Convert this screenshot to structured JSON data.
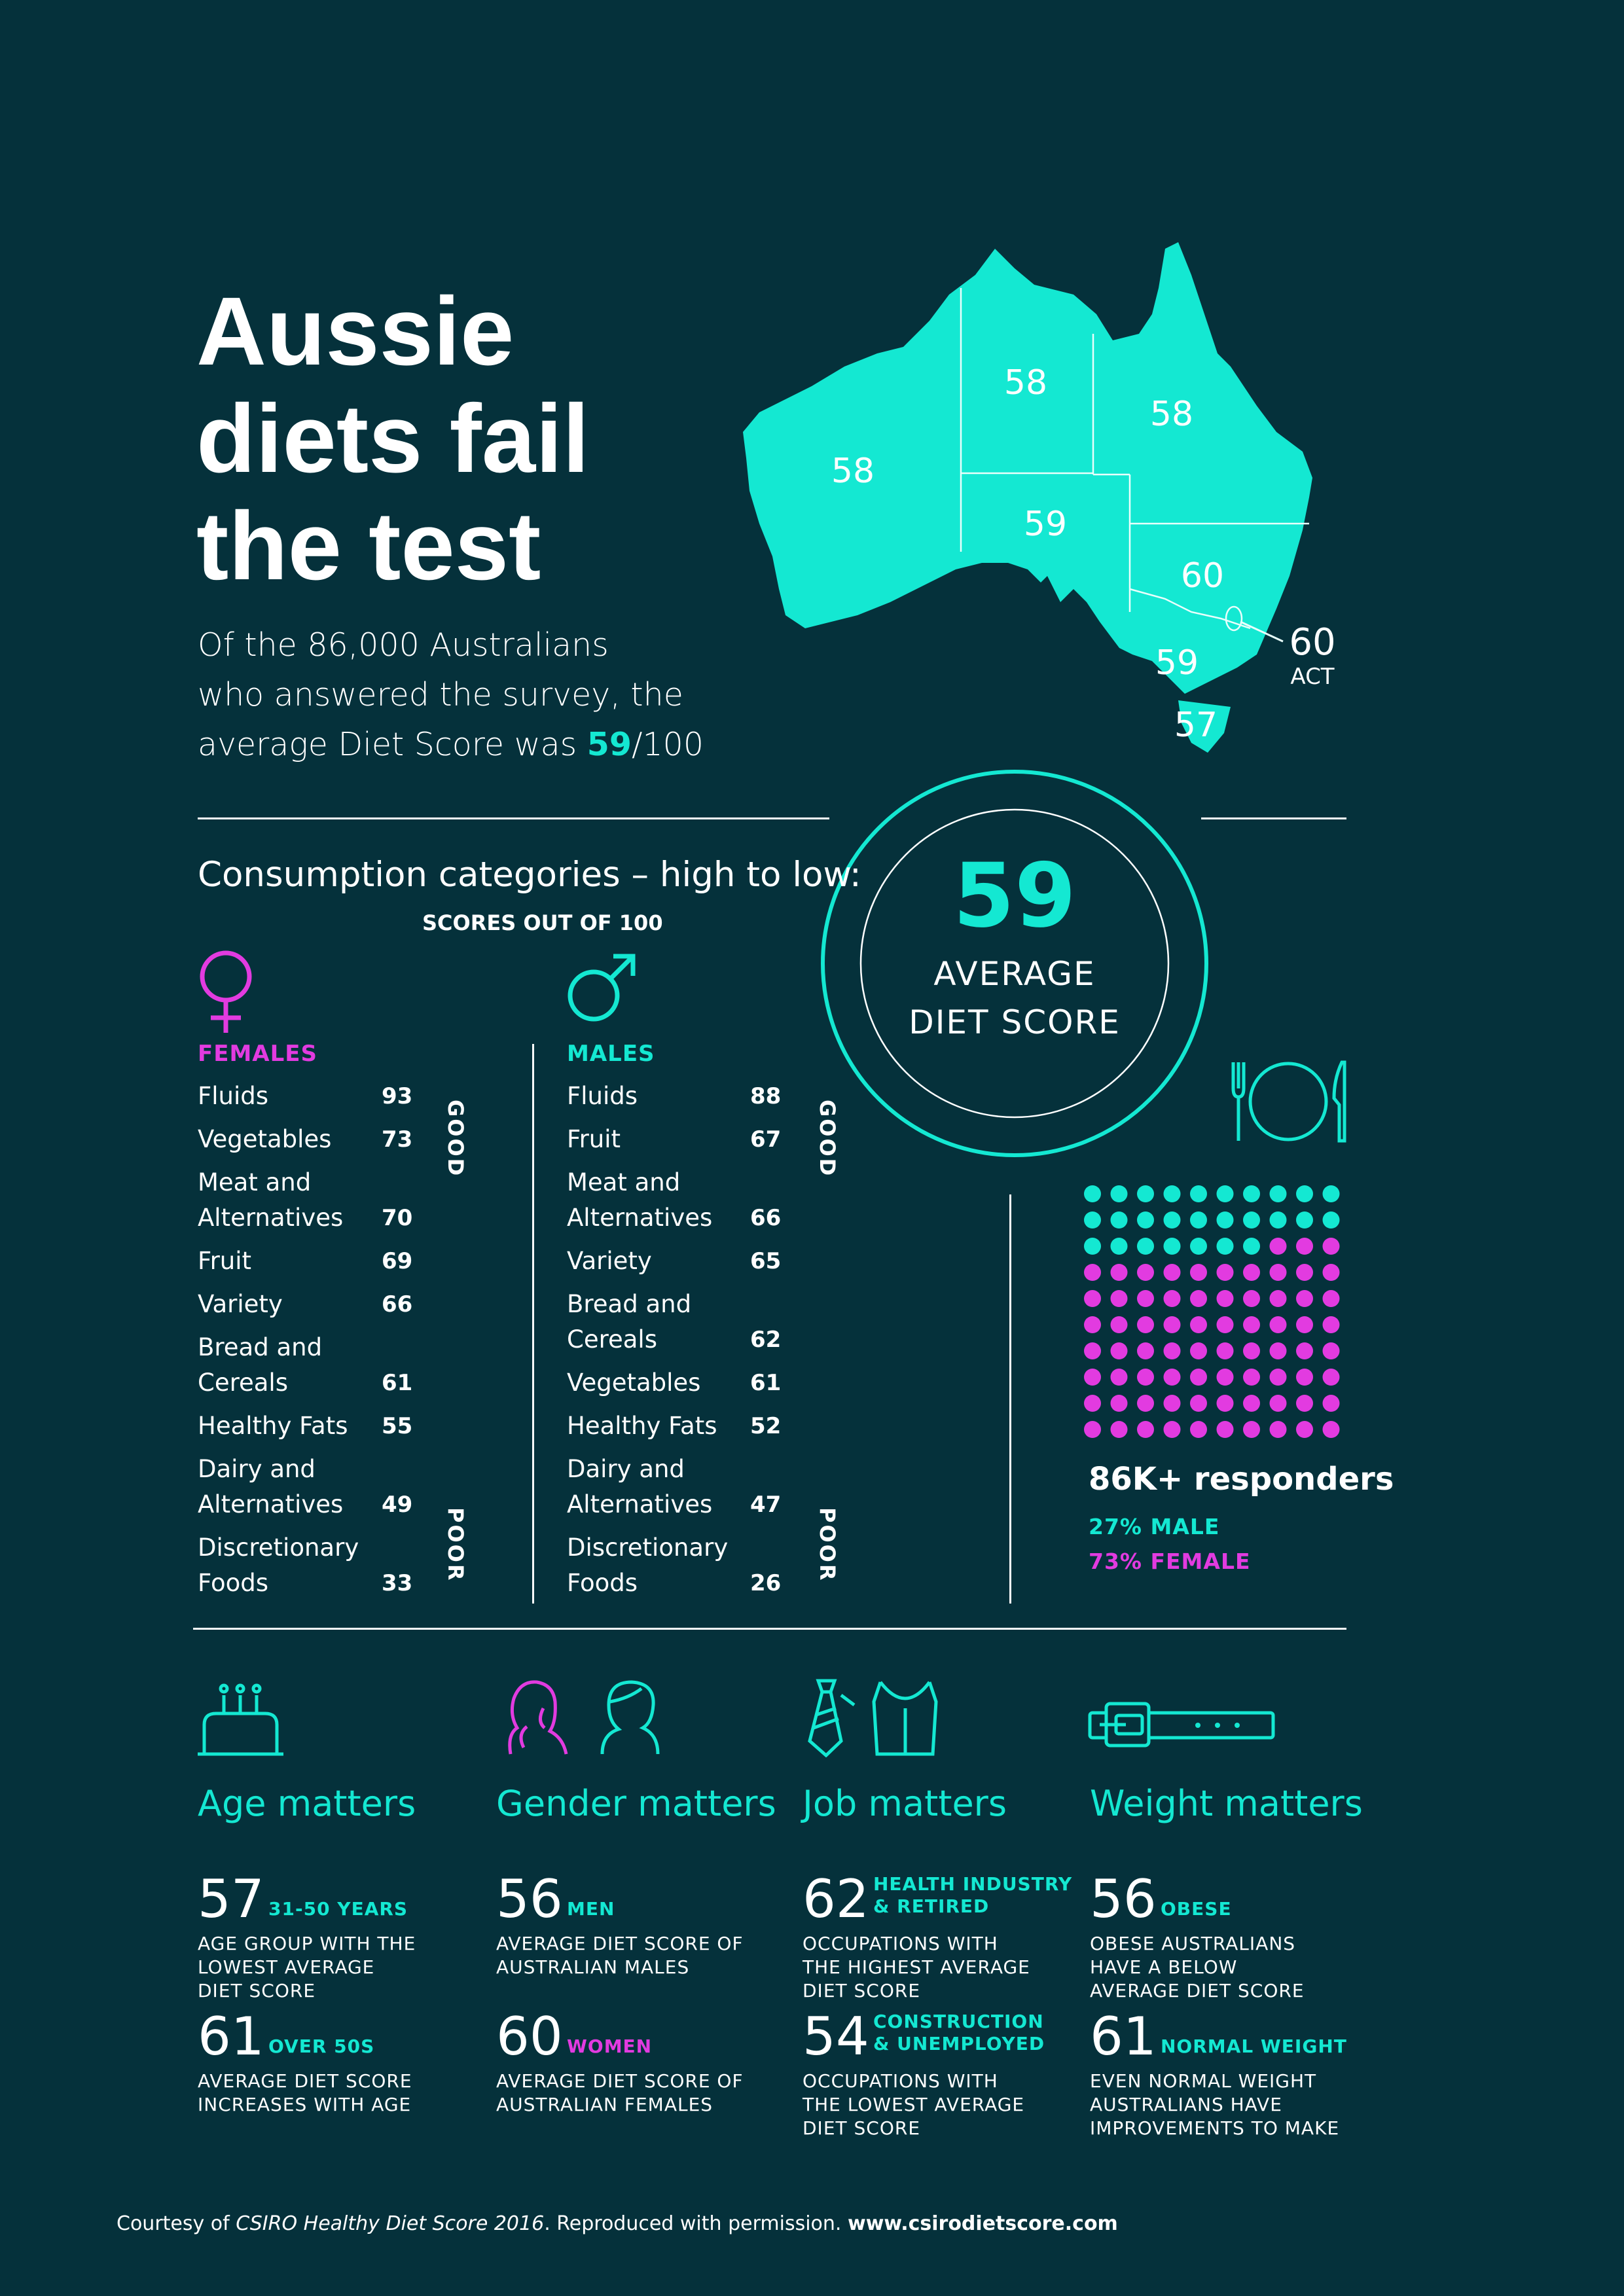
{
  "title": [
    "Aussie",
    "diets fail",
    "the test"
  ],
  "subtitle": {
    "line1": "Of the 86,000 Australians",
    "line2": "who answered the survey, the",
    "line3_prefix": "average Diet Score was ",
    "line3_score": "59",
    "line3_suffix": "/100"
  },
  "map": {
    "states": [
      {
        "name": "WA",
        "score": "58"
      },
      {
        "name": "NT",
        "score": "58"
      },
      {
        "name": "QLD",
        "score": "58"
      },
      {
        "name": "SA",
        "score": "59"
      },
      {
        "name": "NSW",
        "score": "60"
      },
      {
        "name": "VIC",
        "score": "59"
      },
      {
        "name": "TAS",
        "score": "57"
      }
    ],
    "act_score": "60",
    "act_label": "ACT"
  },
  "consumption": {
    "title": "Consumption categories – high to low:",
    "scores_note": "SCORES OUT OF 100",
    "good_label": "GOOD",
    "poor_label": "POOR",
    "females": {
      "label": "FEMALES",
      "color": "#e23be0",
      "rows": [
        {
          "l1": "Fluids",
          "l2": "",
          "value": "93"
        },
        {
          "l1": "Vegetables",
          "l2": "",
          "value": "73"
        },
        {
          "l1": "Meat and",
          "l2": "Alternatives",
          "value": "70"
        },
        {
          "l1": "Fruit",
          "l2": "",
          "value": "69"
        },
        {
          "l1": "Variety",
          "l2": "",
          "value": "66"
        },
        {
          "l1": "Bread and",
          "l2": "Cereals",
          "value": "61"
        },
        {
          "l1": "Healthy Fats",
          "l2": "",
          "value": "55"
        },
        {
          "l1": "Dairy and",
          "l2": "Alternatives",
          "value": "49"
        },
        {
          "l1": "Discretionary",
          "l2": "Foods",
          "value": "33"
        }
      ]
    },
    "males": {
      "label": "MALES",
      "color": "#14e8d2",
      "rows": [
        {
          "l1": "Fluids",
          "l2": "",
          "value": "88"
        },
        {
          "l1": "Fruit",
          "l2": "",
          "value": "67"
        },
        {
          "l1": "Meat and",
          "l2": "Alternatives",
          "value": "66"
        },
        {
          "l1": "Variety",
          "l2": "",
          "value": "65"
        },
        {
          "l1": "Bread and",
          "l2": "Cereals",
          "value": "62"
        },
        {
          "l1": "Vegetables",
          "l2": "",
          "value": "61"
        },
        {
          "l1": "Healthy Fats",
          "l2": "",
          "value": "52"
        },
        {
          "l1": "Dairy and",
          "l2": "Alternatives",
          "value": "47"
        },
        {
          "l1": "Discretionary",
          "l2": "Foods",
          "value": "26"
        }
      ]
    }
  },
  "average": {
    "score": "59",
    "label_line1": "AVERAGE",
    "label_line2": "DIET SCORE"
  },
  "responders": {
    "title": "86K+ responders",
    "male": "27% MALE",
    "female": "73% FEMALE",
    "male_share": 0.27,
    "female_share": 0.73,
    "male_color": "#14e8d2",
    "female_color": "#e23be0"
  },
  "sections": [
    {
      "icon": "birthday-cake-icon",
      "title": "Age matters",
      "stats": [
        {
          "num": "57",
          "tag": "31-50 YEARS",
          "tag_color": "#14e8d2",
          "desc": [
            "AGE GROUP WITH THE",
            "LOWEST AVERAGE",
            "DIET SCORE"
          ]
        },
        {
          "num": "61",
          "tag": "OVER 50S",
          "tag_color": "#14e8d2",
          "desc": [
            "AVERAGE DIET SCORE",
            "INCREASES WITH AGE"
          ]
        }
      ]
    },
    {
      "icon": "woman-and-man-icon",
      "title": "Gender matters",
      "stats": [
        {
          "num": "56",
          "tag": "MEN",
          "tag_color": "#14e8d2",
          "desc": [
            "AVERAGE DIET SCORE OF",
            "AUSTRALIAN MALES"
          ]
        },
        {
          "num": "60",
          "tag": "WOMEN",
          "tag_color": "#e23be0",
          "desc": [
            "AVERAGE DIET SCORE OF",
            "AUSTRALIAN FEMALES"
          ]
        }
      ]
    },
    {
      "icon": "tie-and-vest-icon",
      "title": "Job matters",
      "stats": [
        {
          "num": "62",
          "tag": "HEALTH INDUSTRY|& RETIRED",
          "tag_color": "#14e8d2",
          "desc": [
            "OCCUPATIONS WITH",
            "THE HIGHEST AVERAGE",
            "DIET SCORE"
          ]
        },
        {
          "num": "54",
          "tag": "CONSTRUCTION|& UNEMPLOYED",
          "tag_color": "#14e8d2",
          "desc": [
            "OCCUPATIONS WITH",
            "THE LOWEST AVERAGE",
            "DIET SCORE"
          ]
        }
      ]
    },
    {
      "icon": "belt-icon",
      "title": "Weight matters",
      "stats": [
        {
          "num": "56",
          "tag": "OBESE",
          "tag_color": "#14e8d2",
          "desc": [
            "OBESE AUSTRALIANS",
            "HAVE A BELOW",
            "AVERAGE DIET SCORE"
          ]
        },
        {
          "num": "61",
          "tag": "NORMAL WEIGHT",
          "tag_color": "#14e8d2",
          "desc": [
            "EVEN NORMAL WEIGHT",
            "AUSTRALIANS HAVE",
            "IMPROVEMENTS TO MAKE"
          ]
        }
      ]
    }
  ],
  "footer": {
    "prefix": "Courtesy of ",
    "source": "CSIRO Healthy Diet Score 2016",
    "middle": ". Reproduced with permission. ",
    "url": "www.csirodietscore.com"
  },
  "colors": {
    "background": "#05313b",
    "teal": "#14e8d2",
    "magenta": "#e23be0",
    "white": "#ffffff"
  }
}
